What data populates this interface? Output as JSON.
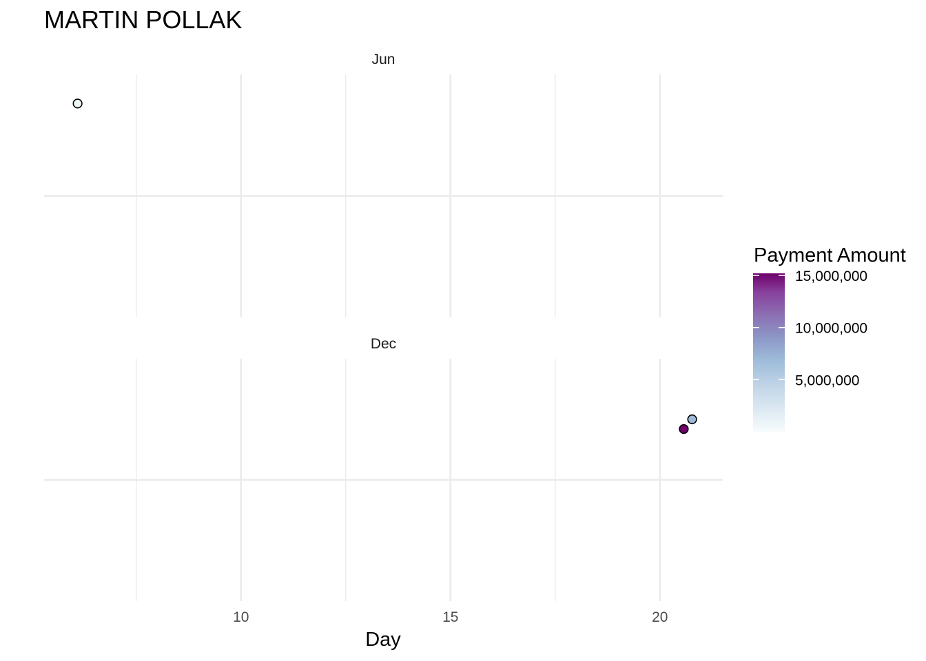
{
  "chart_data": {
    "type": "scatter",
    "title": "MARTIN POLLAK",
    "xlabel": "Day",
    "ylabel": "",
    "x_ticks": [
      10,
      15,
      20
    ],
    "xlim": [
      5.3,
      21.5
    ],
    "grid": true,
    "panels": [
      {
        "name": "Jun",
        "points": [
          {
            "x": 6.1,
            "y": 0.12,
            "value": 300000
          }
        ]
      },
      {
        "name": "Dec",
        "points": [
          {
            "x": 20.57,
            "y": 0.29,
            "value": 15200000
          },
          {
            "x": 20.77,
            "y": 0.25,
            "value": 5300000
          }
        ]
      }
    ],
    "legend": {
      "title": "Payment Amount",
      "placement": "right",
      "ticks": [
        "15,000,000",
        "10,000,000",
        "5,000,000"
      ],
      "tick_values": [
        15000000,
        10000000,
        5000000
      ],
      "range": [
        0,
        15200000
      ],
      "colors": [
        "#f7fcfd",
        "#bfd3e6",
        "#9ebcda",
        "#8c96c6",
        "#8c6bb1",
        "#88419d",
        "#6e016b"
      ]
    }
  }
}
